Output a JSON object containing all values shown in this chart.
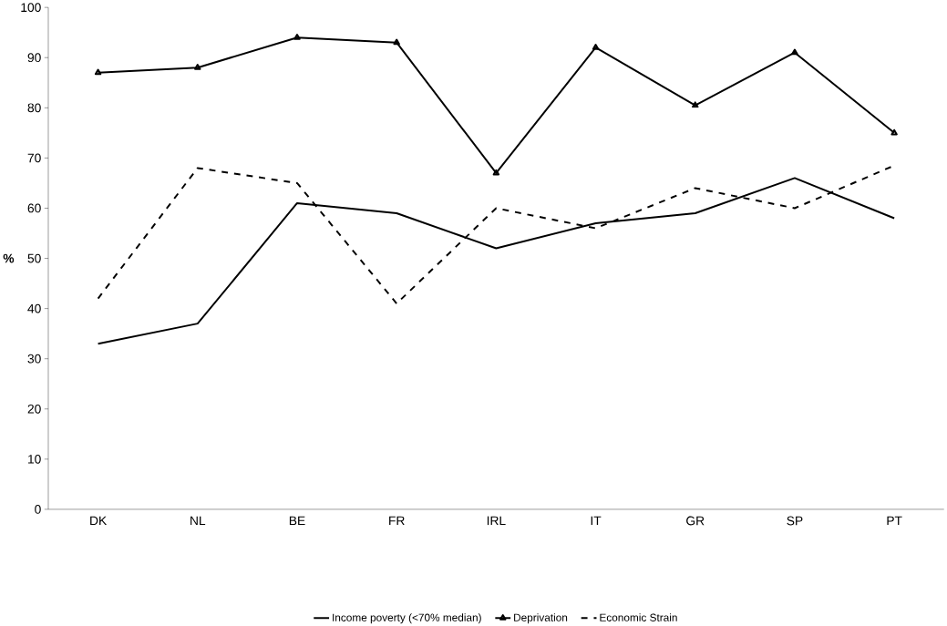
{
  "chart_data": {
    "type": "line",
    "ylabel": "%",
    "categories": [
      "DK",
      "NL",
      "BE",
      "FR",
      "IRL",
      "IT",
      "GR",
      "SP",
      "PT"
    ],
    "ylim": [
      0,
      100
    ],
    "yticks": [
      0,
      10,
      20,
      30,
      40,
      50,
      60,
      70,
      80,
      90,
      100
    ],
    "legend": "bottom",
    "grid": false,
    "series": [
      {
        "name": "Income poverty (<70% median)",
        "color": "#000000",
        "line_style": "solid",
        "marker": "none",
        "values": [
          33,
          37,
          61,
          59,
          52,
          57,
          59,
          66,
          58
        ]
      },
      {
        "name": "Deprivation",
        "color": "#000000",
        "line_style": "solid",
        "marker": "triangle",
        "values": [
          87,
          88,
          94,
          93,
          67,
          92,
          80.5,
          91,
          75
        ]
      },
      {
        "name": "Economic Strain",
        "color": "#000000",
        "line_style": "dashed",
        "marker": "none",
        "values": [
          42,
          68,
          65,
          41,
          60,
          56,
          64,
          60,
          68.5
        ]
      }
    ]
  }
}
